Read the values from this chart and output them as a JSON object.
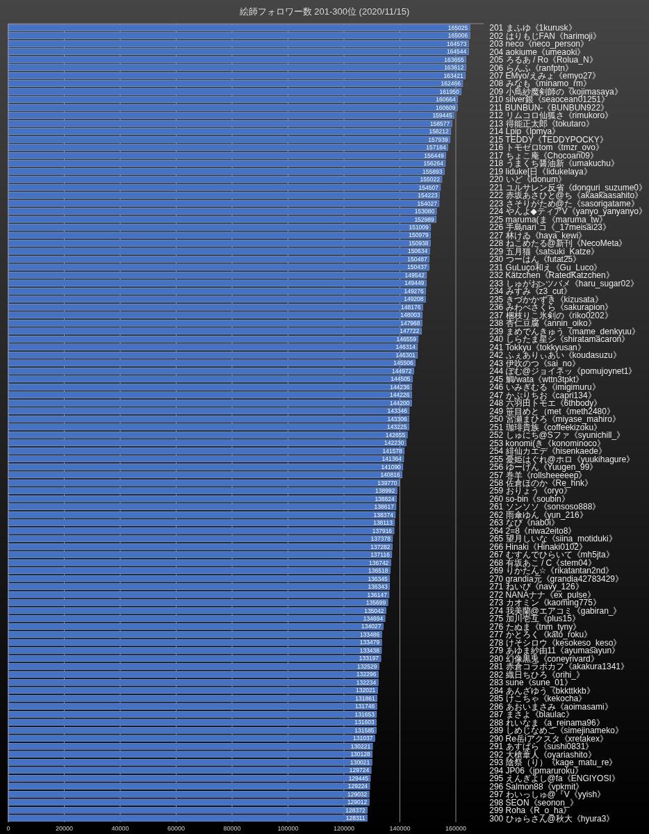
{
  "chart_data": {
    "type": "bar",
    "orientation": "horizontal",
    "title": "絵師フォロワー数 201-300位 (2020/11/15)",
    "categories": [
      "201 まふゆ《1kurusk》",
      "202 はりもじFAN《harimoji》",
      "203 neco《neco_person》",
      "204 aokiume《umeaoki》",
      "205 ろるあ / Ro《Rolua_N》",
      "206 らんふ《ranfptn》",
      "207 EMyo/えみょ《emyo27》",
      "208 みなも《minamo_rm》",
      "209 小鳥紗魔剣師の《kojimasaya》",
      "210 silver銀《seaocean01251》",
      "211 BUNBUN-《BUNBUN922》",
      "212 リムコロ仙狐さ《rimukoro》",
      "213 得能正太郎《tokutaro》",
      "214 Lpip《lpmya》",
      "215 TEDDY《TEDDYPOCKY》",
      "216 トモゼロtom《tmzr_ovo》",
      "217 ちょこ庵《Chocoan09》",
      "218 うまくち醤油新《umakuchu》",
      "219 liduke[日《lidukelaya》",
      "220 いど《idonum》",
      "221 ユルサレン反省《donguri_suzume0》",
      "222 赤坂あさひと@ち《akaakaasahito》",
      "223 さそりがため@た《sasorigatame》",
      "224 やんよ◆ティアV《yanyo_yanyanyo》",
      "225 maruma(ま《maruma_tw》",
      "226 手島nari コ《_17meisai23》",
      "227 林けゐ《haya_kewi》",
      "228 ねこめたる@新刊《NecoMeta》",
      "229 五月猫《satsuki_Katze》",
      "230 つーはん《futat25》",
      "231 GuLuço和え《Gu_Luco》",
      "232 Kätzchen《RatedKatzchen》",
      "233 しゅがお▷ツバメ《haru_sugar02》",
      "234 みすみ《z3_cut》",
      "235 きづかかずき《kizusata》",
      "236 みわべさくら《sakurapion》",
      "237 梱枝りこ氷剣の《riko0202》",
      "238 杏仁豆腐《annin_oiko》",
      "239 まめでんきゅう《mame_denkyuu》",
      "240 しらたま星シ《shiratamacaron》",
      "241 Tokkyu《tokkyusan》",
      "242 ふぇありぃあい《koudasuzu》",
      "243 伊吹のつ《sai_no》",
      "244 ぽむ@ジョイネッ《pomujoynet1》",
      "245 鯛/wata《wttn3tpkt》",
      "246 いみぎむる《imigimuru》",
      "247 かぷりちお《capri134》",
      "248 六羽田トモエ《6thbody》",
      "249 笹目めと（met《meth2480》",
      "250 宮瀬まひろ《miyase_mahiro》",
      "251 珈琲貴族《coffeekizoku》",
      "252 しゅにち@Sファ《syunichill_》",
      "253 konomi(き《konominoco》",
      "254 緋仙カエデ《hisenkaede》",
      "255 憂姫はぐれ@ホロ《yuukihagure》",
      "256 ゆーげん《Yuugen_99》",
      "257 巻羊《rollsheeeeep》",
      "258 佐倉ほのか《Re_hnk》",
      "259 おりょう《oryo》",
      "260 so-bin《soubin》",
      "261 ソンソソ《sonsoso888》",
      "262 雨傘ゆん《yun_216》",
      "263 なび《nab0i》",
      "264 2=8《niwa2eito8》",
      "265 望月しいな《siina_motiduki》",
      "266 Hinaki《Hinaki0102》",
      "267 むすんでひらいて《mh5jta》",
      "268 有坂あこ / C《stem04》",
      "269 りかたん☆《rikatantan2nd》",
      "270 grandia元《grandia42783429》",
      "271 ねいび《navy_126》",
      "272 NANAナナ《ex_pulse》",
      "273 カオミン《kaoming775》",
      "274 我美蘭@エアコミ《gabiran_》",
      "275 加川壱互《plus15》",
      "276 たぬま《tnm_tyny》",
      "277 かとろく《kato_roku》",
      "278 けそシロウ《kesokeso_keso》",
      "279 あゆま紗由11《ayumasayun》",
      "280 幻像黒兎《coneyrivard》",
      "281 赤倉コラボカフ《akakura1341》",
      "282 織日ちひろ《orihi_》",
      "283 sune《sune_01》",
      "284 あんざゆう《bkkttkkb》",
      "285 けこちゃ《kekocha》",
      "286 あおいまさみ《aoimasami》",
      "287 まさよ《blaulac》",
      "288 れいなま《a_reinama96》",
      "289 しめじなめこ《simejinameko》",
      "290 Re岳iアクスタ《xretakex》",
      "291 あすぱら《sushi0831》",
      "292 大槍葦人《oyariashito》",
      "293 陰祭（り）《kage_matu_re》",
      "294 JP06《jpmaruroku》",
      "295 えんぎよし@fa《ENGIYOSI》",
      "296 Salmon88《vpkmit》",
      "297 わいっしゅ@『V《yyish》",
      "298 SEON《seonon_》",
      "299 Roha《R_o_ha》",
      "300 ひゅらさん@秋大《hyura3》"
    ],
    "values": [
      165025,
      165006,
      164573,
      164544,
      163655,
      163612,
      163421,
      162466,
      161950,
      160664,
      160609,
      159445,
      158577,
      158212,
      157939,
      157184,
      156449,
      156264,
      155893,
      155022,
      154507,
      154223,
      154027,
      153080,
      152989,
      151009,
      150979,
      150938,
      150634,
      150487,
      150437,
      149542,
      149449,
      149276,
      149208,
      148176,
      148003,
      147968,
      147722,
      146559,
      146314,
      146301,
      145506,
      144972,
      144505,
      144236,
      144226,
      144200,
      143346,
      143306,
      143225,
      142655,
      142230,
      141578,
      141364,
      141090,
      140816,
      139770,
      138992,
      138824,
      138617,
      138374,
      138113,
      137916,
      137378,
      137282,
      137116,
      136742,
      136518,
      136345,
      136343,
      136147,
      135699,
      135042,
      134694,
      134027,
      133486,
      133479,
      133438,
      133197,
      132529,
      132296,
      132234,
      132021,
      131861,
      131746,
      131653,
      131603,
      131585,
      131037,
      130221,
      130128,
      130021,
      129724,
      129445,
      129224,
      129032,
      129012,
      128372,
      128311
    ],
    "color": "#4472c4",
    "xlim": [
      0,
      170000
    ],
    "xticks": [
      0,
      20000,
      40000,
      60000,
      80000,
      100000,
      120000,
      140000,
      160000
    ],
    "grid": "x",
    "data_labels": true
  }
}
